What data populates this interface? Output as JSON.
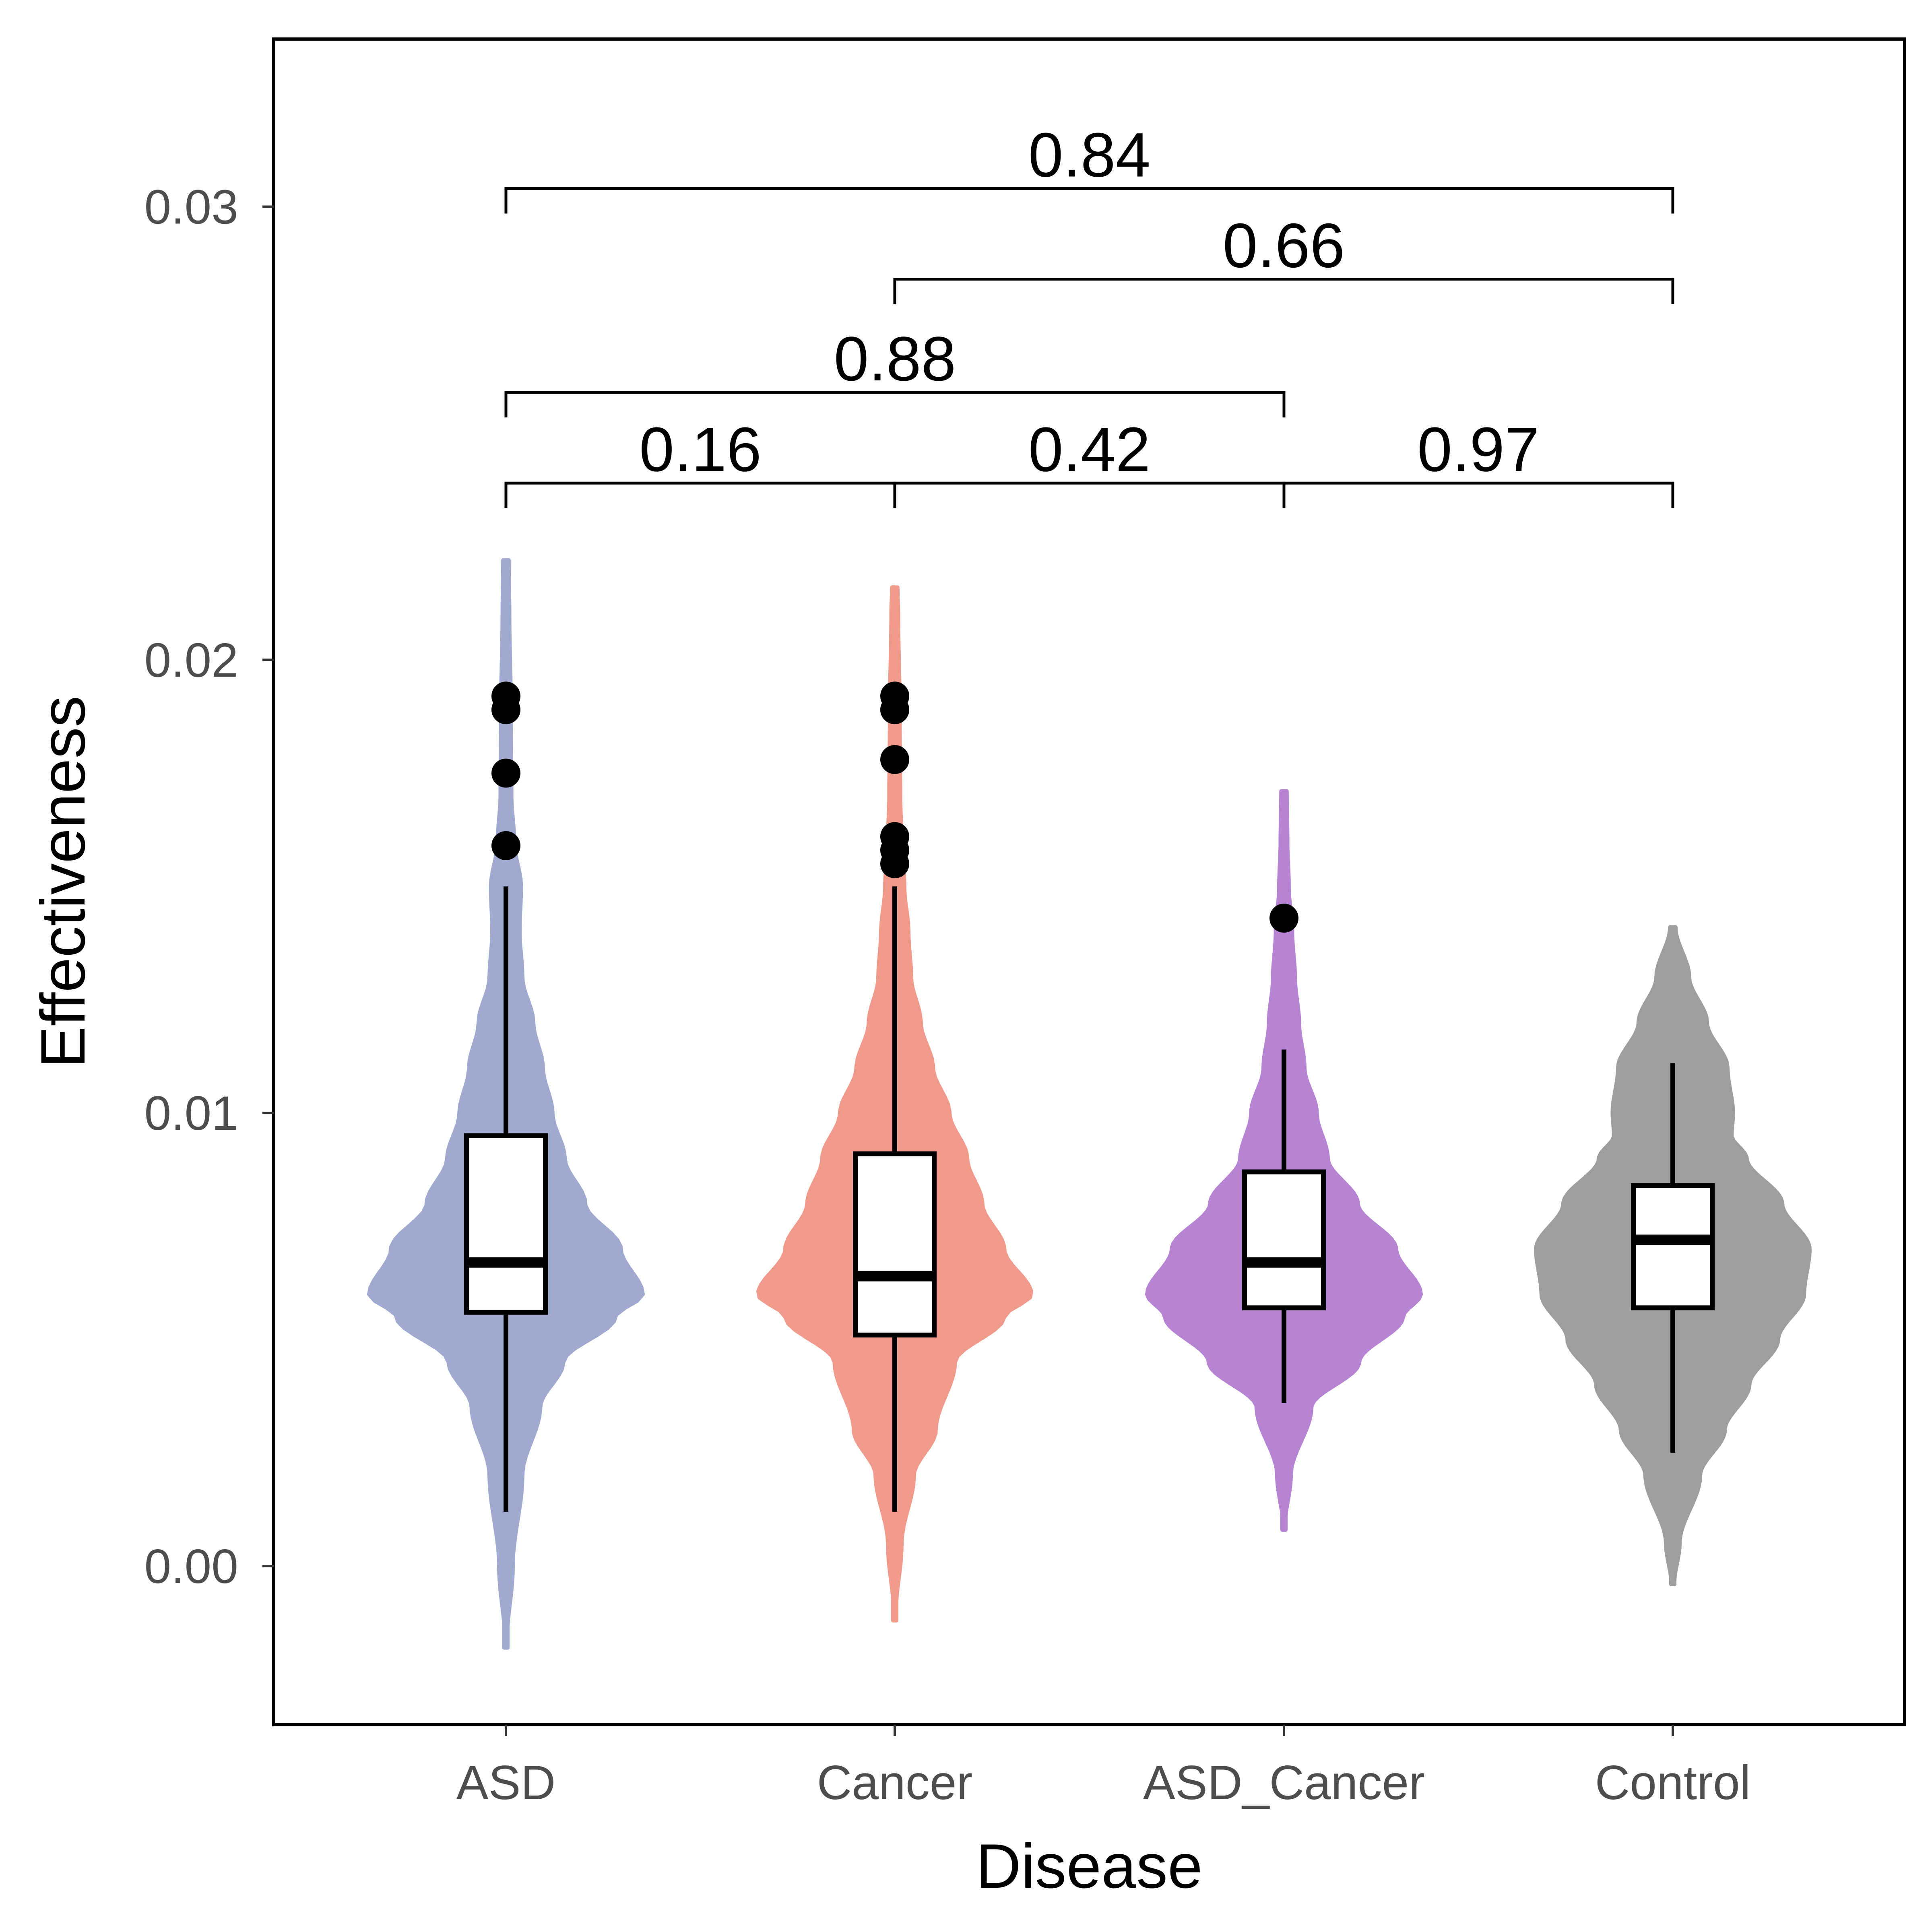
{
  "chart_data": {
    "type": "violin",
    "title": "",
    "xlabel": "Disease",
    "ylabel": "Effectiveness",
    "ylim": [
      -0.0035,
      0.0337
    ],
    "yticks": [
      0.0,
      0.01,
      0.02,
      0.03
    ],
    "ytick_labels": [
      "0.00",
      "0.01",
      "0.02",
      "0.03"
    ],
    "categories": [
      "ASD",
      "Cancer",
      "ASD_Cancer",
      "Control"
    ],
    "grid": false,
    "legend": "none",
    "series": [
      {
        "category": "ASD",
        "color": "#a0aad0",
        "violin_range": [
          -0.0018,
          0.0222
        ],
        "box": {
          "whisker_low": 0.0012,
          "q1": 0.0056,
          "median": 0.0067,
          "q3": 0.0095,
          "whisker_high": 0.015
        },
        "outliers": [
          0.0159,
          0.0175,
          0.0189,
          0.0192
        ],
        "density": [
          [
            -0.0018,
            0.002
          ],
          [
            0.0,
            0.05
          ],
          [
            0.002,
            0.12
          ],
          [
            0.0035,
            0.25
          ],
          [
            0.0045,
            0.42
          ],
          [
            0.0055,
            0.8
          ],
          [
            0.006,
            1.0
          ],
          [
            0.007,
            0.84
          ],
          [
            0.008,
            0.58
          ],
          [
            0.009,
            0.43
          ],
          [
            0.01,
            0.34
          ],
          [
            0.011,
            0.27
          ],
          [
            0.012,
            0.2
          ],
          [
            0.013,
            0.12
          ],
          [
            0.014,
            0.1
          ],
          [
            0.015,
            0.11
          ],
          [
            0.016,
            0.06
          ],
          [
            0.017,
            0.04
          ],
          [
            0.019,
            0.035
          ],
          [
            0.021,
            0.025
          ],
          [
            0.0222,
            0.02
          ]
        ]
      },
      {
        "category": "Cancer",
        "color": "#f09a8c",
        "violin_range": [
          -0.0012,
          0.0216
        ],
        "box": {
          "whisker_low": 0.0012,
          "q1": 0.0051,
          "median": 0.0064,
          "q3": 0.0091,
          "whisker_high": 0.015
        },
        "outliers": [
          0.0155,
          0.0158,
          0.0161,
          0.0178,
          0.0189,
          0.0192
        ],
        "density": [
          [
            -0.0012,
            0.002
          ],
          [
            0.0005,
            0.05
          ],
          [
            0.002,
            0.14
          ],
          [
            0.003,
            0.3
          ],
          [
            0.0045,
            0.44
          ],
          [
            0.0055,
            0.8
          ],
          [
            0.006,
            1.0
          ],
          [
            0.007,
            0.8
          ],
          [
            0.008,
            0.64
          ],
          [
            0.009,
            0.53
          ],
          [
            0.01,
            0.4
          ],
          [
            0.011,
            0.28
          ],
          [
            0.012,
            0.19
          ],
          [
            0.013,
            0.12
          ],
          [
            0.014,
            0.1
          ],
          [
            0.015,
            0.07
          ],
          [
            0.016,
            0.05
          ],
          [
            0.017,
            0.04
          ],
          [
            0.019,
            0.035
          ],
          [
            0.021,
            0.025
          ],
          [
            0.0216,
            0.02
          ]
        ]
      },
      {
        "category": "ASD_Cancer",
        "color": "#b784d4",
        "violin_range": [
          0.0008,
          0.0171
        ],
        "box": {
          "whisker_low": 0.0036,
          "q1": 0.0057,
          "median": 0.0067,
          "q3": 0.0087,
          "whisker_high": 0.0114
        },
        "outliers": [
          0.0143
        ],
        "density": [
          [
            0.0008,
            0.002
          ],
          [
            0.002,
            0.05
          ],
          [
            0.0035,
            0.2
          ],
          [
            0.0045,
            0.55
          ],
          [
            0.0055,
            0.87
          ],
          [
            0.006,
            1.0
          ],
          [
            0.007,
            0.82
          ],
          [
            0.008,
            0.54
          ],
          [
            0.009,
            0.32
          ],
          [
            0.01,
            0.24
          ],
          [
            0.011,
            0.15
          ],
          [
            0.012,
            0.11
          ],
          [
            0.013,
            0.08
          ],
          [
            0.014,
            0.06
          ],
          [
            0.015,
            0.035
          ],
          [
            0.016,
            0.025
          ],
          [
            0.0171,
            0.02
          ]
        ]
      },
      {
        "category": "Control",
        "color": "#9e9e9e",
        "violin_range": [
          -0.0004,
          0.0141
        ],
        "box": {
          "whisker_low": 0.0025,
          "q1": 0.0057,
          "median": 0.0072,
          "q3": 0.0084,
          "whisker_high": 0.0111
        },
        "outliers": [],
        "density": [
          [
            -0.0004,
            0.01
          ],
          [
            0.0005,
            0.05
          ],
          [
            0.002,
            0.2
          ],
          [
            0.003,
            0.38
          ],
          [
            0.004,
            0.56
          ],
          [
            0.005,
            0.77
          ],
          [
            0.006,
            0.96
          ],
          [
            0.007,
            1.0
          ],
          [
            0.008,
            0.8
          ],
          [
            0.009,
            0.54
          ],
          [
            0.0095,
            0.43
          ],
          [
            0.01,
            0.44
          ],
          [
            0.011,
            0.4
          ],
          [
            0.012,
            0.25
          ],
          [
            0.013,
            0.12
          ],
          [
            0.0141,
            0.02
          ]
        ]
      }
    ],
    "comparisons": [
      {
        "from": 0,
        "to": 1,
        "label": "0.16",
        "y": 0.0239
      },
      {
        "from": 1,
        "to": 2,
        "label": "0.42",
        "y": 0.0239
      },
      {
        "from": 2,
        "to": 3,
        "label": "0.97",
        "y": 0.0239
      },
      {
        "from": 0,
        "to": 2,
        "label": "0.88",
        "y": 0.0259
      },
      {
        "from": 1,
        "to": 3,
        "label": "0.66",
        "y": 0.0284
      },
      {
        "from": 0,
        "to": 3,
        "label": "0.84",
        "y": 0.0304
      }
    ]
  }
}
